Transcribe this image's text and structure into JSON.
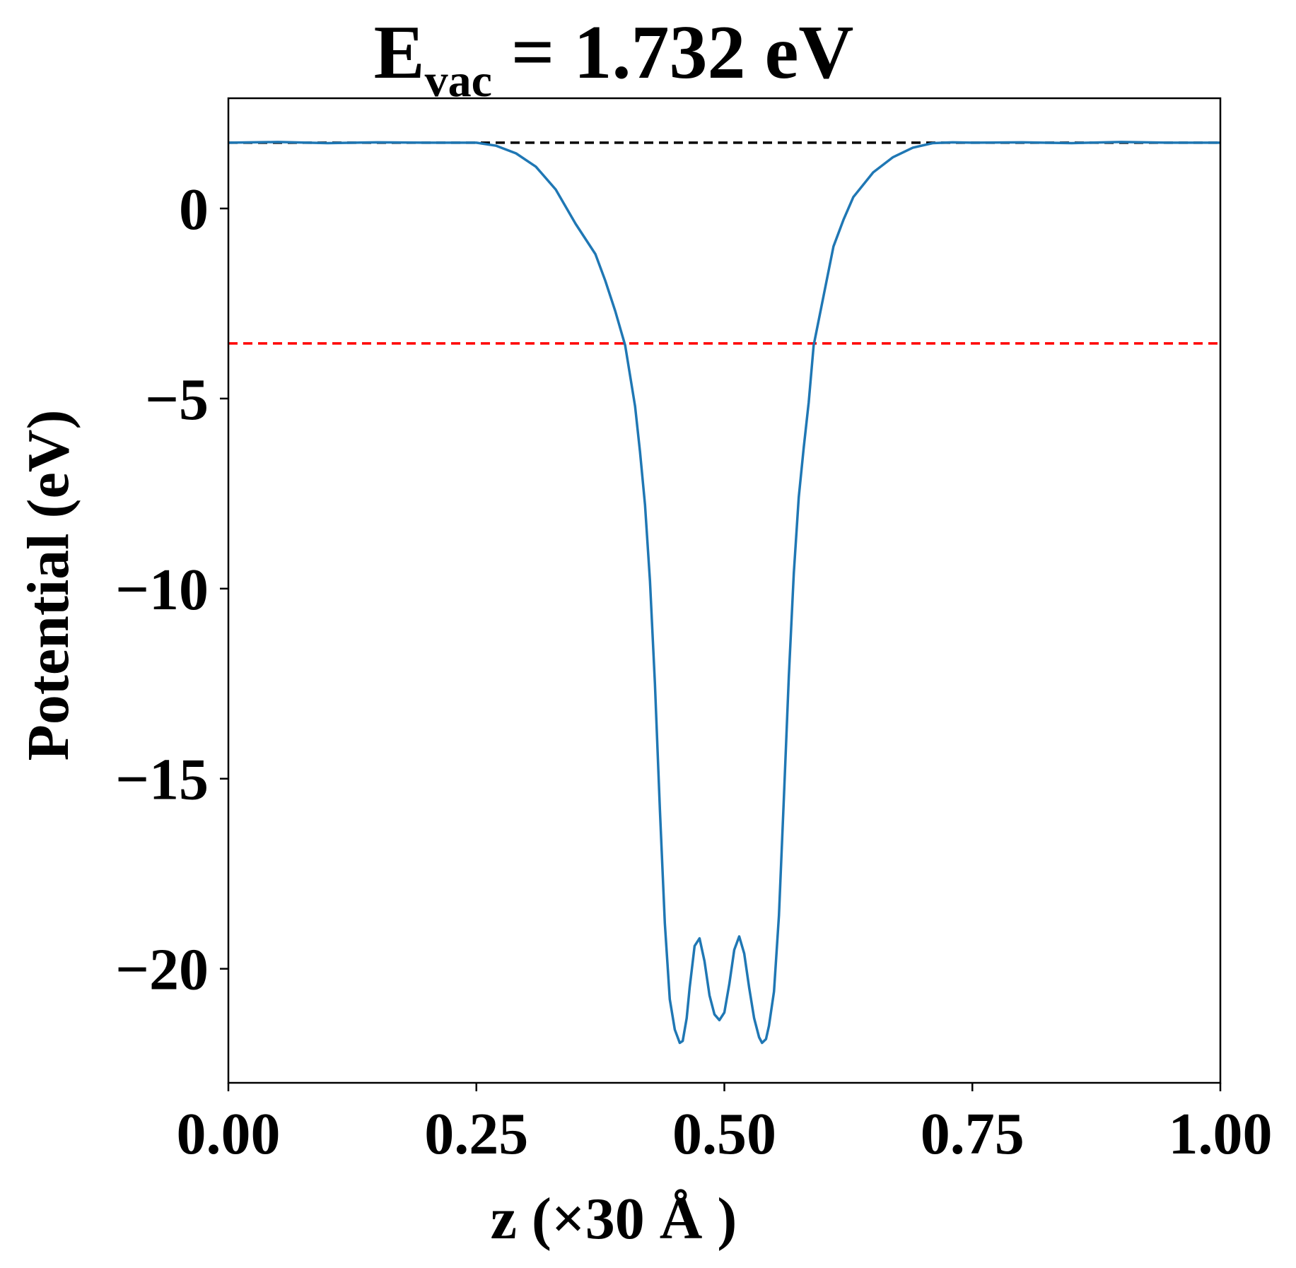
{
  "chart_data": {
    "type": "line",
    "title_main": "E",
    "title_sub": "vac",
    "title_rest": " = 1.732 eV",
    "xlabel": "z (×30 Å )",
    "ylabel": "Potential (eV)",
    "xlim": [
      0,
      1
    ],
    "ylim": [
      -23,
      2.9
    ],
    "xticks": [
      0,
      0.25,
      0.5,
      0.75,
      1.0
    ],
    "xtick_labels": [
      "0.00",
      "0.25",
      "0.50",
      "0.75",
      "1.00"
    ],
    "yticks": [
      0,
      -5,
      -10,
      -15,
      -20
    ],
    "ytick_labels": [
      "0",
      "−5",
      "−10",
      "−15",
      "−20"
    ],
    "grid": false,
    "reference_lines": [
      {
        "y": 1.732,
        "color": "#000000",
        "style": "dashed"
      },
      {
        "y": -3.55,
        "color": "#ff0000",
        "style": "dashed"
      }
    ],
    "series": [
      {
        "color": "#1f77b4",
        "x": [
          0.0,
          0.05,
          0.1,
          0.15,
          0.2,
          0.25,
          0.27,
          0.29,
          0.31,
          0.33,
          0.35,
          0.37,
          0.38,
          0.39,
          0.4,
          0.41,
          0.415,
          0.42,
          0.425,
          0.43,
          0.435,
          0.44,
          0.445,
          0.45,
          0.455,
          0.458,
          0.462,
          0.465,
          0.47,
          0.475,
          0.48,
          0.485,
          0.49,
          0.495,
          0.5,
          0.505,
          0.51,
          0.515,
          0.52,
          0.525,
          0.53,
          0.535,
          0.538,
          0.542,
          0.545,
          0.55,
          0.555,
          0.56,
          0.565,
          0.57,
          0.575,
          0.58,
          0.585,
          0.59,
          0.6,
          0.61,
          0.62,
          0.63,
          0.65,
          0.67,
          0.69,
          0.71,
          0.73,
          0.75,
          0.8,
          0.85,
          0.9,
          0.95,
          1.0
        ],
        "y": [
          1.73,
          1.75,
          1.72,
          1.74,
          1.73,
          1.73,
          1.65,
          1.45,
          1.1,
          0.5,
          -0.4,
          -1.2,
          -1.9,
          -2.7,
          -3.6,
          -5.2,
          -6.4,
          -7.8,
          -9.8,
          -12.5,
          -15.8,
          -18.8,
          -20.8,
          -21.6,
          -21.95,
          -21.9,
          -21.3,
          -20.5,
          -19.4,
          -19.2,
          -19.8,
          -20.7,
          -21.2,
          -21.35,
          -21.15,
          -20.4,
          -19.5,
          -19.15,
          -19.6,
          -20.5,
          -21.3,
          -21.8,
          -21.95,
          -21.85,
          -21.5,
          -20.6,
          -18.6,
          -15.5,
          -12.3,
          -9.6,
          -7.6,
          -6.3,
          -5.1,
          -3.6,
          -2.3,
          -1.0,
          -0.3,
          0.3,
          0.95,
          1.35,
          1.6,
          1.72,
          1.74,
          1.73,
          1.74,
          1.72,
          1.75,
          1.73,
          1.73
        ]
      }
    ]
  }
}
